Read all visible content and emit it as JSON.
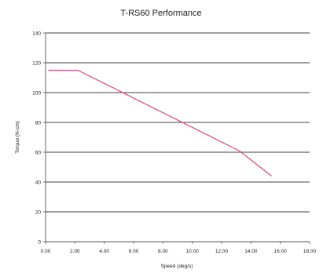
{
  "chart_data": {
    "type": "line",
    "title": "T-RS60 Performance",
    "xlabel": "Speed (deg/s)",
    "ylabel": "Torque (N-cm)",
    "xlim": [
      0,
      18
    ],
    "ylim": [
      0,
      140
    ],
    "x_ticks": [
      0,
      2,
      4,
      6,
      8,
      10,
      12,
      14,
      16,
      18
    ],
    "x_tick_labels": [
      "0.00",
      "2.00",
      "4.00",
      "6.00",
      "8.00",
      "10.00",
      "12.00",
      "14.00",
      "16.00",
      "18.00"
    ],
    "y_ticks": [
      0,
      20,
      40,
      60,
      80,
      100,
      120,
      140
    ],
    "y_tick_labels": [
      "0",
      "20",
      "40",
      "60",
      "80",
      "100",
      "120",
      "140"
    ],
    "grid": "horizontal",
    "legend": "none",
    "colors": {
      "line": "#e0457a",
      "grid": "#000000",
      "axis": "#555555"
    },
    "series": [
      {
        "x": [
          0.2,
          2.2,
          13.2,
          15.4
        ],
        "y": [
          115,
          115,
          61,
          44
        ]
      }
    ]
  }
}
